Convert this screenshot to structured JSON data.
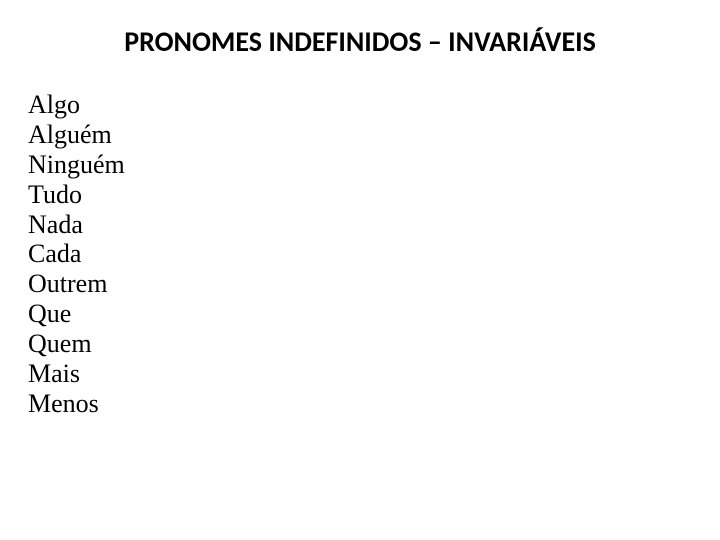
{
  "title": "PRONOMES INDEFINIDOS – INVARIÁVEIS",
  "items": [
    "Algo",
    "Alguém",
    "Ninguém",
    "Tudo",
    "Nada",
    "Cada",
    "Outrem",
    "Que",
    "Quem",
    "Mais",
    "Menos"
  ],
  "colors": {
    "background": "#ffffff",
    "text": "#000000"
  },
  "typography": {
    "title_font": "Calibri",
    "title_size_pt": 21,
    "title_weight": "bold",
    "body_font": "Times New Roman",
    "body_size_pt": 20,
    "body_weight": "normal"
  }
}
